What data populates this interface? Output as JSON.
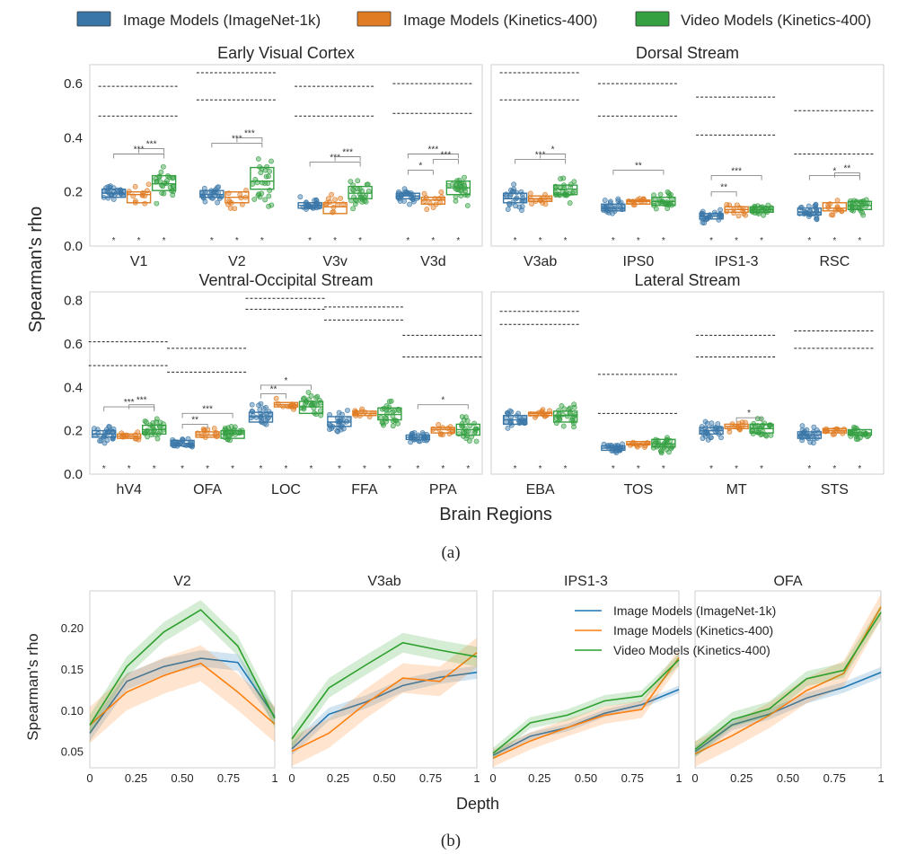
{
  "colors": {
    "imagenet": "#3a77a8",
    "kinetics_image": "#e07d24",
    "video": "#35a042",
    "star": "#333333",
    "ceiling": "#222222"
  },
  "legend": {
    "items": [
      {
        "label": "Image Models (ImageNet-1k)",
        "color": "#3a77a8"
      },
      {
        "label": "Image Models (Kinetics-400)",
        "color": "#e07d24"
      },
      {
        "label": "Video Models (Kinetics-400)",
        "color": "#35a042"
      }
    ]
  },
  "panel_a": {
    "ylabel": "Spearman's rho",
    "xlabel": "Brain Regions",
    "caption": "(a)",
    "star_label": "*",
    "chart_data": [
      {
        "type": "box",
        "title": "Early Visual Cortex",
        "ylim": [
          0,
          0.67
        ],
        "yticks": [
          0.0,
          0.2,
          0.4,
          0.6
        ],
        "ytick_labels": [
          "0.0",
          "0.2",
          "0.4",
          "0.6"
        ],
        "categories": [
          "V1",
          "V2",
          "V3v",
          "V3d"
        ],
        "series": [
          {
            "name": "Image Models (ImageNet-1k)",
            "box": [
              [
                0.18,
                0.195,
                0.21
              ],
              [
                0.18,
                0.19,
                0.205
              ],
              [
                0.14,
                0.15,
                0.16
              ],
              [
                0.175,
                0.185,
                0.195
              ]
            ]
          },
          {
            "name": "Image Models (Kinetics-400)",
            "box": [
              [
                0.16,
                0.19,
                0.2
              ],
              [
                0.16,
                0.18,
                0.2
              ],
              [
                0.12,
                0.145,
                0.16
              ],
              [
                0.155,
                0.17,
                0.18
              ]
            ]
          },
          {
            "name": "Video Models (Kinetics-400)",
            "box": [
              [
                0.205,
                0.23,
                0.26
              ],
              [
                0.21,
                0.24,
                0.29
              ],
              [
                0.175,
                0.195,
                0.22
              ],
              [
                0.19,
                0.215,
                0.24
              ]
            ]
          }
        ],
        "ceilings": [
          [
            0.59,
            0.48
          ],
          [
            0.64,
            0.54
          ],
          [
            0.59,
            0.48
          ],
          [
            0.6,
            0.49
          ]
        ],
        "brackets": [
          {
            "cat": 0,
            "from": 0,
            "to": 2,
            "y": 0.34,
            "label": "***"
          },
          {
            "cat": 0,
            "from": 1,
            "to": 2,
            "y": 0.36,
            "label": "***"
          },
          {
            "cat": 1,
            "from": 0,
            "to": 2,
            "y": 0.38,
            "label": "***"
          },
          {
            "cat": 1,
            "from": 1,
            "to": 2,
            "y": 0.4,
            "label": "***"
          },
          {
            "cat": 2,
            "from": 0,
            "to": 2,
            "y": 0.31,
            "label": "***"
          },
          {
            "cat": 2,
            "from": 1,
            "to": 2,
            "y": 0.33,
            "label": "***"
          },
          {
            "cat": 3,
            "from": 0,
            "to": 1,
            "y": 0.28,
            "label": "*"
          },
          {
            "cat": 3,
            "from": 0,
            "to": 2,
            "y": 0.34,
            "label": "***"
          },
          {
            "cat": 3,
            "from": 1,
            "to": 2,
            "y": 0.32,
            "label": "***"
          }
        ]
      },
      {
        "type": "box",
        "title": "Dorsal Stream",
        "ylim": [
          0,
          0.67
        ],
        "yticks": [
          0.0,
          0.2,
          0.4,
          0.6
        ],
        "ytick_labels": [
          "",
          "",
          "",
          ""
        ],
        "categories": [
          "V3ab",
          "IPS0",
          "IPS1-3",
          "RSC"
        ],
        "series": [
          {
            "name": "Image Models (ImageNet-1k)",
            "box": [
              [
                0.16,
                0.175,
                0.195
              ],
              [
                0.13,
                0.14,
                0.155
              ],
              [
                0.1,
                0.11,
                0.12
              ],
              [
                0.115,
                0.125,
                0.14
              ]
            ]
          },
          {
            "name": "Image Models (Kinetics-400)",
            "box": [
              [
                0.165,
                0.175,
                0.185
              ],
              [
                0.155,
                0.165,
                0.17
              ],
              [
                0.125,
                0.135,
                0.145
              ],
              [
                0.13,
                0.14,
                0.16
              ]
            ]
          },
          {
            "name": "Video Models (Kinetics-400)",
            "box": [
              [
                0.19,
                0.21,
                0.225
              ],
              [
                0.15,
                0.165,
                0.18
              ],
              [
                0.125,
                0.135,
                0.145
              ],
              [
                0.135,
                0.15,
                0.165
              ]
            ]
          }
        ],
        "ceilings": [
          [
            0.64,
            0.54
          ],
          [
            0.6,
            0.48
          ],
          [
            0.55,
            0.41
          ],
          [
            0.5,
            0.34
          ]
        ],
        "brackets": [
          {
            "cat": 0,
            "from": 0,
            "to": 2,
            "y": 0.32,
            "label": "***"
          },
          {
            "cat": 0,
            "from": 1,
            "to": 2,
            "y": 0.34,
            "label": "*"
          },
          {
            "cat": 1,
            "from": 0,
            "to": 2,
            "y": 0.28,
            "label": "**"
          },
          {
            "cat": 2,
            "from": 0,
            "to": 1,
            "y": 0.2,
            "label": "**"
          },
          {
            "cat": 2,
            "from": 0,
            "to": 2,
            "y": 0.26,
            "label": "***"
          },
          {
            "cat": 3,
            "from": 0,
            "to": 2,
            "y": 0.26,
            "label": "*"
          },
          {
            "cat": 3,
            "from": 1,
            "to": 2,
            "y": 0.27,
            "label": "**"
          }
        ]
      },
      {
        "type": "box",
        "title": "Ventral-Occipital Stream",
        "ylim": [
          0,
          0.84
        ],
        "yticks": [
          0.0,
          0.2,
          0.4,
          0.6,
          0.8
        ],
        "ytick_labels": [
          "0.0",
          "0.2",
          "0.4",
          "0.6",
          "0.8"
        ],
        "categories": [
          "hV4",
          "OFA",
          "LOC",
          "FFA",
          "PPA"
        ],
        "series": [
          {
            "name": "Image Models (ImageNet-1k)",
            "box": [
              [
                0.17,
                0.185,
                0.2
              ],
              [
                0.13,
                0.14,
                0.155
              ],
              [
                0.24,
                0.265,
                0.285
              ],
              [
                0.22,
                0.24,
                0.265
              ],
              [
                0.16,
                0.17,
                0.18
              ]
            ]
          },
          {
            "name": "Image Models (Kinetics-400)",
            "box": [
              [
                0.165,
                0.175,
                0.185
              ],
              [
                0.17,
                0.18,
                0.195
              ],
              [
                0.31,
                0.32,
                0.33
              ],
              [
                0.27,
                0.28,
                0.29
              ],
              [
                0.19,
                0.205,
                0.215
              ]
            ]
          },
          {
            "name": "Video Models (Kinetics-400)",
            "box": [
              [
                0.185,
                0.205,
                0.225
              ],
              [
                0.165,
                0.185,
                0.2
              ],
              [
                0.28,
                0.31,
                0.335
              ],
              [
                0.25,
                0.275,
                0.305
              ],
              [
                0.18,
                0.205,
                0.23
              ]
            ]
          }
        ],
        "ceilings": [
          [
            0.61,
            0.5
          ],
          [
            0.58,
            0.47
          ],
          [
            0.81,
            0.76
          ],
          [
            0.77,
            0.71
          ],
          [
            0.64,
            0.54
          ]
        ],
        "brackets": [
          {
            "cat": 0,
            "from": 0,
            "to": 2,
            "y": 0.31,
            "label": "***"
          },
          {
            "cat": 0,
            "from": 1,
            "to": 2,
            "y": 0.32,
            "label": "***"
          },
          {
            "cat": 1,
            "from": 0,
            "to": 1,
            "y": 0.23,
            "label": "**"
          },
          {
            "cat": 1,
            "from": 0,
            "to": 2,
            "y": 0.28,
            "label": "***"
          },
          {
            "cat": 2,
            "from": 0,
            "to": 1,
            "y": 0.37,
            "label": "**"
          },
          {
            "cat": 2,
            "from": 0,
            "to": 2,
            "y": 0.41,
            "label": "*"
          },
          {
            "cat": 4,
            "from": 0,
            "to": 2,
            "y": 0.32,
            "label": "*"
          }
        ]
      },
      {
        "type": "box",
        "title": "Lateral Stream",
        "ylim": [
          0,
          0.84
        ],
        "yticks": [
          0.0,
          0.2,
          0.4,
          0.6,
          0.8
        ],
        "ytick_labels": [
          "",
          "",
          "",
          "",
          ""
        ],
        "categories": [
          "EBA",
          "TOS",
          "MT",
          "STS"
        ],
        "series": [
          {
            "name": "Image Models (ImageNet-1k)",
            "box": [
              [
                0.23,
                0.25,
                0.27
              ],
              [
                0.11,
                0.12,
                0.13
              ],
              [
                0.185,
                0.2,
                0.215
              ],
              [
                0.165,
                0.18,
                0.195
              ]
            ]
          },
          {
            "name": "Image Models (Kinetics-400)",
            "box": [
              [
                0.27,
                0.28,
                0.285
              ],
              [
                0.135,
                0.14,
                0.15
              ],
              [
                0.21,
                0.22,
                0.23
              ],
              [
                0.19,
                0.2,
                0.21
              ]
            ]
          },
          {
            "name": "Video Models (Kinetics-400)",
            "box": [
              [
                0.24,
                0.27,
                0.29
              ],
              [
                0.125,
                0.14,
                0.16
              ],
              [
                0.19,
                0.21,
                0.23
              ],
              [
                0.18,
                0.19,
                0.205
              ]
            ]
          }
        ],
        "ceilings": [
          [
            0.75,
            0.69
          ],
          [
            0.46,
            0.28
          ],
          [
            0.64,
            0.54
          ],
          [
            0.66,
            0.58
          ]
        ],
        "brackets": [
          {
            "cat": 2,
            "from": 1,
            "to": 2,
            "y": 0.26,
            "label": "*"
          }
        ]
      }
    ]
  },
  "panel_b": {
    "ylabel": "Spearman's rho",
    "xlabel": "Depth",
    "caption": "(b)",
    "legend_labels": [
      "Image Models (ImageNet-1k)",
      "Image Models (Kinetics-400)",
      "Video Models (Kinetics-400)"
    ],
    "chart_data": [
      {
        "type": "line",
        "title": "V2",
        "x": [
          0,
          0.2,
          0.4,
          0.6,
          0.8,
          1.0
        ],
        "xlim": [
          0,
          1
        ],
        "ylim": [
          0.03,
          0.245
        ],
        "xticks": [
          0,
          0.25,
          0.5,
          0.75,
          1.0
        ],
        "xtick_labels": [
          "0",
          "0.25",
          "0.50",
          "0.75",
          "1"
        ],
        "yticks": [
          0.05,
          0.1,
          0.15,
          0.2
        ],
        "ytick_labels": [
          "0.05",
          "0.10",
          "0.15",
          "0.20"
        ],
        "series": [
          {
            "name": "Image Models (ImageNet-1k)",
            "values": [
              0.072,
              0.135,
              0.153,
              0.163,
              0.158,
              0.092
            ],
            "band": 0.01
          },
          {
            "name": "Image Models (Kinetics-400)",
            "values": [
              0.082,
              0.122,
              0.142,
              0.157,
              0.122,
              0.083
            ],
            "band": 0.022
          },
          {
            "name": "Video Models (Kinetics-400)",
            "values": [
              0.082,
              0.153,
              0.195,
              0.222,
              0.178,
              0.09
            ],
            "band": 0.012
          }
        ]
      },
      {
        "type": "line",
        "title": "V3ab",
        "x": [
          0,
          0.2,
          0.4,
          0.6,
          0.8,
          1.0
        ],
        "xlim": [
          0,
          1
        ],
        "ylim": [
          0.03,
          0.245
        ],
        "xticks": [
          0,
          0.25,
          0.5,
          0.75,
          1.0
        ],
        "xtick_labels": [
          "0",
          "0.25",
          "0.50",
          "0.75",
          "1"
        ],
        "yticks": [
          0.05,
          0.1,
          0.15,
          0.2
        ],
        "ytick_labels": [
          "",
          "",
          "",
          ""
        ],
        "series": [
          {
            "name": "Image Models (ImageNet-1k)",
            "values": [
              0.053,
              0.095,
              0.11,
              0.13,
              0.14,
              0.146
            ],
            "band": 0.008
          },
          {
            "name": "Image Models (Kinetics-400)",
            "values": [
              0.05,
              0.072,
              0.108,
              0.139,
              0.135,
              0.17
            ],
            "band": 0.018
          },
          {
            "name": "Video Models (Kinetics-400)",
            "values": [
              0.065,
              0.127,
              0.155,
              0.182,
              0.173,
              0.165
            ],
            "band": 0.012
          }
        ]
      },
      {
        "type": "line",
        "title": "IPS1-3",
        "x": [
          0,
          0.2,
          0.4,
          0.6,
          0.8,
          1.0
        ],
        "xlim": [
          0,
          1
        ],
        "ylim": [
          0.015,
          0.2
        ],
        "xticks": [
          0,
          0.25,
          0.5,
          0.75,
          1.0
        ],
        "xtick_labels": [
          "0",
          "0.25",
          "0.50",
          "0.75",
          "1"
        ],
        "yticks": [],
        "ytick_labels": [],
        "series": [
          {
            "name": "Image Models (ImageNet-1k)",
            "values": [
              0.028,
              0.048,
              0.057,
              0.072,
              0.081,
              0.097
            ],
            "band": 0.004
          },
          {
            "name": "Image Models (Kinetics-400)",
            "values": [
              0.025,
              0.043,
              0.057,
              0.07,
              0.076,
              0.13
            ],
            "band": 0.009
          },
          {
            "name": "Video Models (Kinetics-400)",
            "values": [
              0.03,
              0.062,
              0.07,
              0.085,
              0.09,
              0.128
            ],
            "band": 0.006
          }
        ]
      },
      {
        "type": "line",
        "title": "OFA",
        "x": [
          0,
          0.2,
          0.4,
          0.6,
          0.8,
          1.0
        ],
        "xlim": [
          0,
          1
        ],
        "ylim": [
          0.035,
          0.2
        ],
        "xticks": [
          0,
          0.25,
          0.5,
          0.75,
          1.0
        ],
        "xtick_labels": [
          "0",
          "0.25",
          "0.50",
          "0.75",
          "1"
        ],
        "yticks": [],
        "ytick_labels": [],
        "series": [
          {
            "name": "Image Models (ImageNet-1k)",
            "values": [
              0.05,
              0.075,
              0.085,
              0.1,
              0.11,
              0.124
            ],
            "band": 0.005
          },
          {
            "name": "Image Models (Kinetics-400)",
            "values": [
              0.048,
              0.065,
              0.084,
              0.107,
              0.123,
              0.185
            ],
            "band": 0.012
          },
          {
            "name": "Video Models (Kinetics-400)",
            "values": [
              0.052,
              0.08,
              0.09,
              0.118,
              0.126,
              0.18
            ],
            "band": 0.007
          }
        ]
      }
    ]
  }
}
